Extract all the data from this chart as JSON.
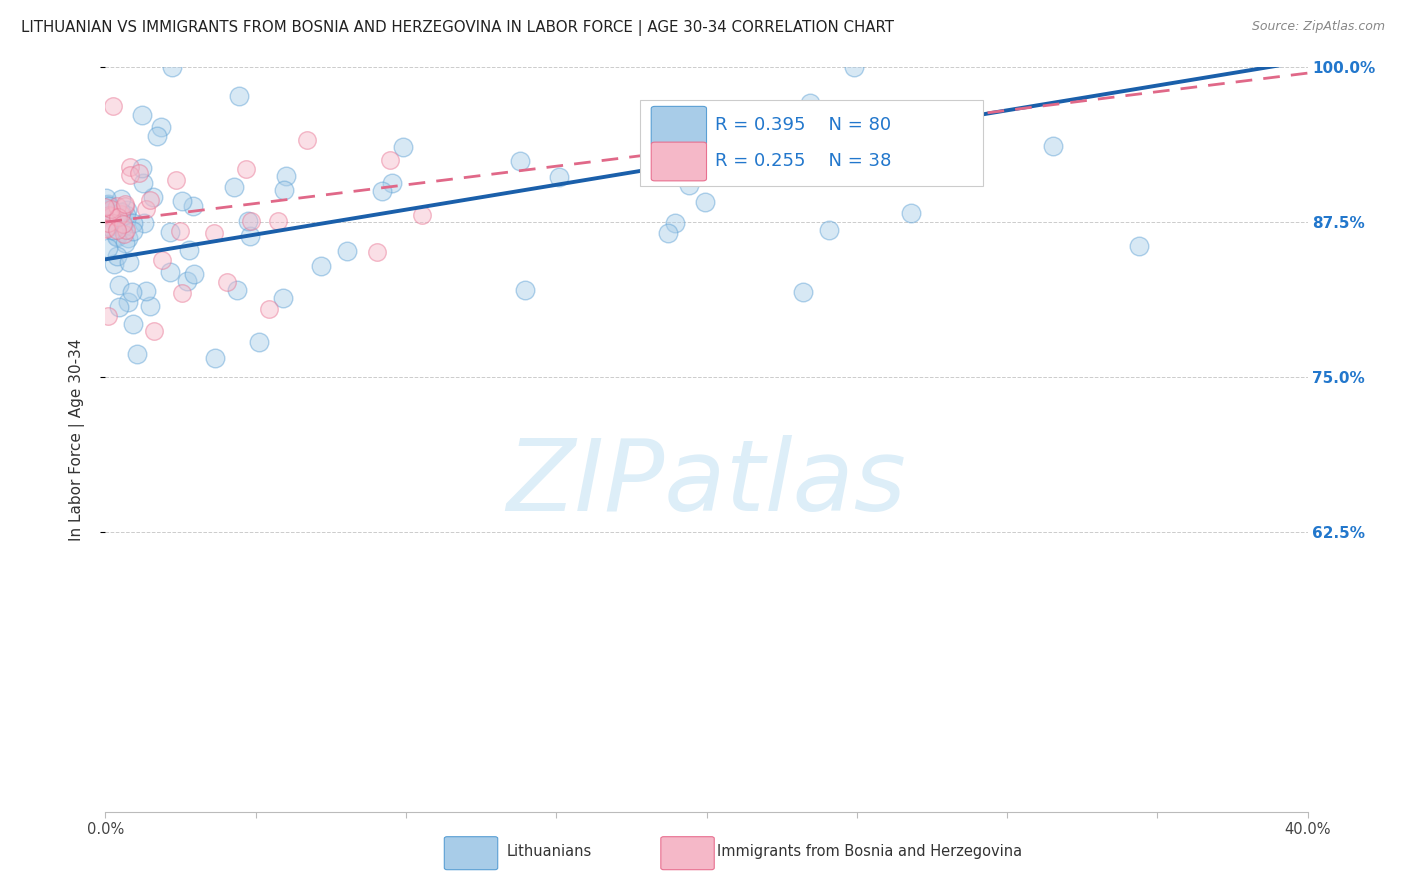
{
  "title": "LITHUANIAN VS IMMIGRANTS FROM BOSNIA AND HERZEGOVINA IN LABOR FORCE | AGE 30-34 CORRELATION CHART",
  "source": "Source: ZipAtlas.com",
  "ylabel": "In Labor Force | Age 30-34",
  "xlim": [
    0.0,
    0.4
  ],
  "ylim": [
    0.4,
    1.0
  ],
  "xtick_positions": [
    0.0,
    0.05,
    0.1,
    0.15,
    0.2,
    0.25,
    0.3,
    0.35,
    0.4
  ],
  "xticklabels": [
    "0.0%",
    "",
    "",
    "",
    "",
    "",
    "",
    "",
    "40.0%"
  ],
  "ytick_positions": [
    0.625,
    0.75,
    0.875,
    1.0
  ],
  "ytick_labels": [
    "62.5%",
    "75.0%",
    "87.5%",
    "100.0%"
  ],
  "blue_R": 0.395,
  "blue_N": 80,
  "pink_R": 0.255,
  "pink_N": 38,
  "blue_scatter_color": "#a8cce8",
  "blue_edge_color": "#5a9fd4",
  "pink_scatter_color": "#f5b8c8",
  "pink_edge_color": "#e87090",
  "blue_line_color": "#1a5faa",
  "pink_line_color": "#e06888",
  "watermark_text": "ZIPatlas",
  "watermark_color": "#ddeef8",
  "legend_label_blue": "Lithuanians",
  "legend_label_pink": "Immigrants from Bosnia and Herzegovina",
  "ytick_color": "#2277cc",
  "grid_color": "#cccccc",
  "blue_line_intercept": 0.845,
  "blue_line_slope": 0.4,
  "pink_line_intercept": 0.875,
  "pink_line_slope": 0.3
}
